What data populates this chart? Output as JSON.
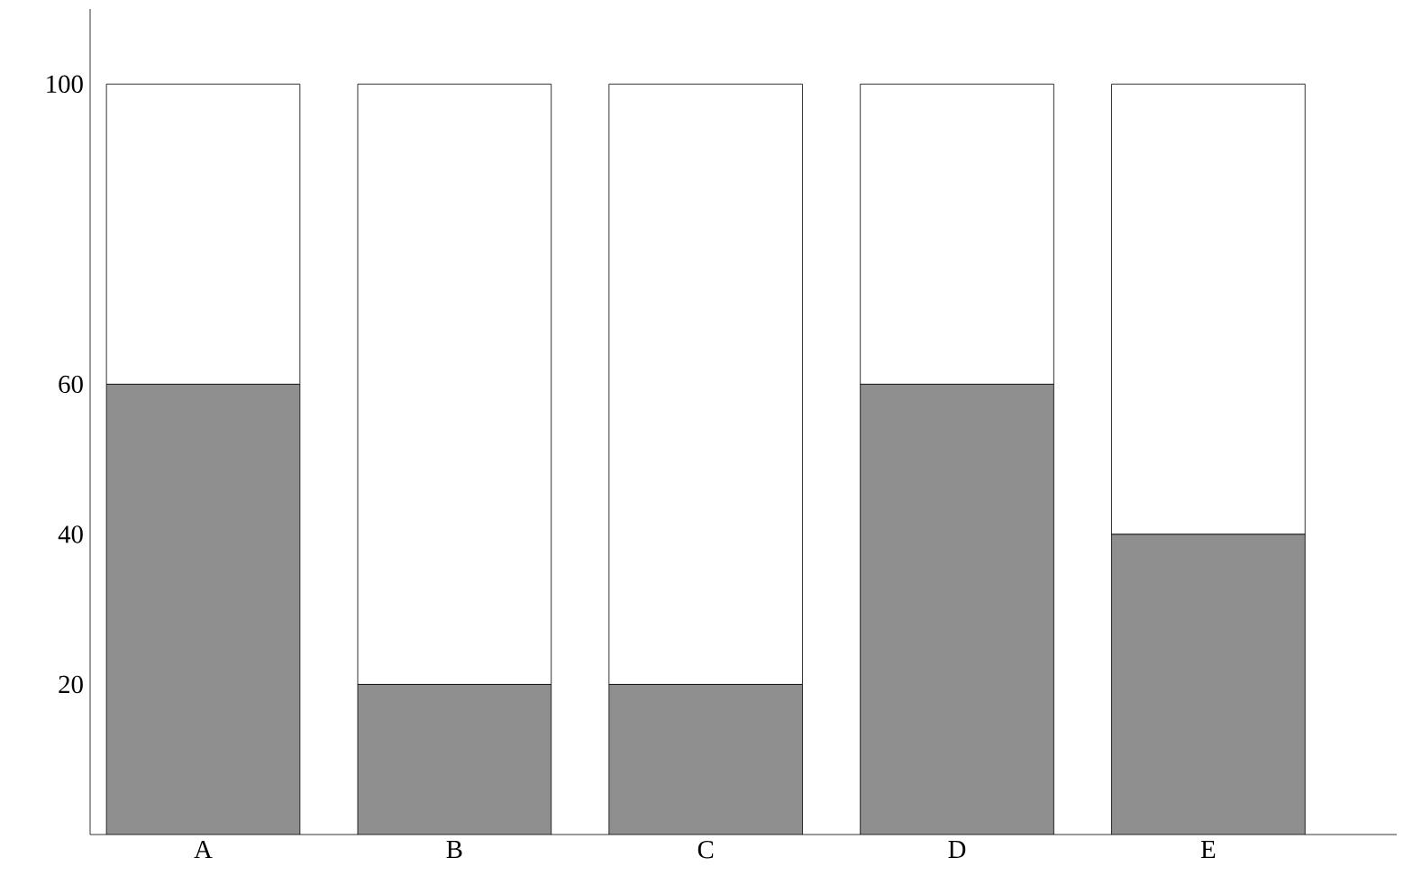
{
  "chart_data": {
    "type": "bar",
    "stacked": true,
    "categories": [
      "A",
      "B",
      "C",
      "D",
      "E"
    ],
    "series": [
      {
        "color": "#8f8f8f",
        "values": [
          60,
          20,
          20,
          60,
          40
        ]
      },
      {
        "color": "#ffffff",
        "values": [
          40,
          80,
          80,
          40,
          60
        ]
      }
    ],
    "ylim": [
      0,
      110
    ],
    "yticks": [
      20,
      40,
      60,
      100
    ]
  }
}
